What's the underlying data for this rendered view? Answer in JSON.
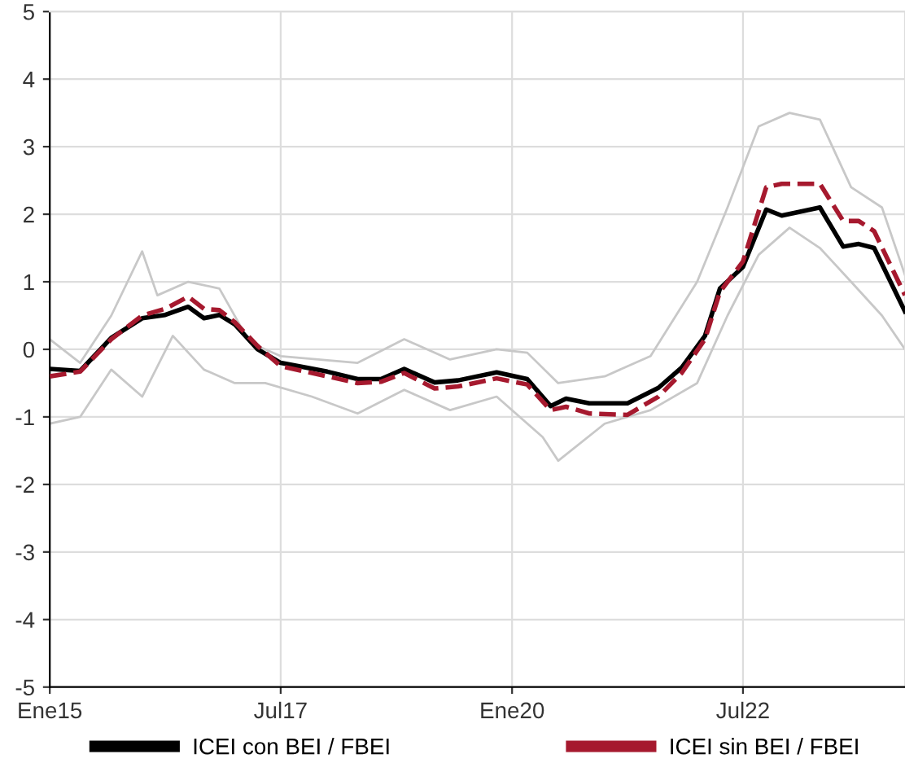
{
  "chart_data": {
    "type": "line",
    "xlim": [
      "2015-01",
      "2024-04"
    ],
    "xticks": [
      {
        "value": "2015-01",
        "label": "Ene15"
      },
      {
        "value": "2017-07",
        "label": "Jul17"
      },
      {
        "value": "2020-01",
        "label": "Ene20"
      },
      {
        "value": "2022-07",
        "label": "Jul22"
      }
    ],
    "ylim": [
      -5,
      5
    ],
    "yticks": [
      -5,
      -4,
      -3,
      -2,
      -1,
      0,
      1,
      2,
      3,
      4,
      5
    ],
    "grid": true,
    "legend": "bottom",
    "series": [
      {
        "color": "#c8c8c8",
        "x": [
          "2015-01",
          "2015-05",
          "2015-09",
          "2016-01",
          "2016-03",
          "2016-07",
          "2016-11",
          "2017-03",
          "2017-07",
          "2018-05",
          "2018-11",
          "2019-05",
          "2019-11",
          "2020-03",
          "2020-07",
          "2021-01",
          "2021-07",
          "2022-01",
          "2022-05",
          "2022-09",
          "2023-01",
          "2023-05",
          "2023-09",
          "2024-01",
          "2024-04"
        ],
        "values": [
          0.15,
          -0.2,
          0.5,
          1.45,
          0.8,
          1.0,
          0.9,
          0.1,
          -0.1,
          -0.2,
          0.15,
          -0.15,
          0.0,
          -0.05,
          -0.5,
          -0.4,
          -0.1,
          1.0,
          2.1,
          3.3,
          3.5,
          3.4,
          2.4,
          2.1,
          1.1
        ]
      },
      {
        "color": "#c8c8c8",
        "x": [
          "2015-01",
          "2015-05",
          "2015-09",
          "2016-01",
          "2016-05",
          "2016-09",
          "2017-01",
          "2017-05",
          "2017-11",
          "2018-05",
          "2018-11",
          "2019-05",
          "2019-11",
          "2020-05",
          "2020-07",
          "2021-01",
          "2021-07",
          "2022-01",
          "2022-05",
          "2022-09",
          "2023-01",
          "2023-05",
          "2023-09",
          "2024-01",
          "2024-04"
        ],
        "values": [
          -1.1,
          -1.0,
          -0.3,
          -0.7,
          0.2,
          -0.3,
          -0.5,
          -0.5,
          -0.7,
          -0.95,
          -0.6,
          -0.9,
          -0.7,
          -1.3,
          -1.65,
          -1.1,
          -0.9,
          -0.5,
          0.5,
          1.4,
          1.8,
          1.5,
          1.0,
          0.5,
          0.0
        ]
      },
      {
        "name": "ICEI con BEI / FBEI",
        "color": "#000000",
        "line_style": "solid",
        "x": [
          "2015-01",
          "2015-05",
          "2015-09",
          "2016-01",
          "2016-04",
          "2016-07",
          "2016-09",
          "2016-11",
          "2017-01",
          "2017-04",
          "2017-07",
          "2018-01",
          "2018-05",
          "2018-08",
          "2018-11",
          "2019-03",
          "2019-06",
          "2019-11",
          "2020-03",
          "2020-06",
          "2020-08",
          "2020-11",
          "2021-04",
          "2021-08",
          "2021-11",
          "2022-02",
          "2022-04",
          "2022-07",
          "2022-10",
          "2022-12",
          "2023-05",
          "2023-08",
          "2023-10",
          "2023-12",
          "2024-04"
        ],
        "values": [
          -0.29,
          -0.32,
          0.17,
          0.46,
          0.51,
          0.63,
          0.46,
          0.51,
          0.37,
          0.0,
          -0.2,
          -0.33,
          -0.44,
          -0.44,
          -0.29,
          -0.49,
          -0.46,
          -0.34,
          -0.44,
          -0.84,
          -0.73,
          -0.8,
          -0.8,
          -0.57,
          -0.27,
          0.2,
          0.9,
          1.22,
          2.07,
          1.98,
          2.1,
          1.52,
          1.56,
          1.5,
          0.56
        ]
      },
      {
        "name": "ICEI sin BEI / FBEI",
        "color": "#a6192e",
        "line_style": "dashed",
        "x": [
          "2015-01",
          "2015-05",
          "2015-09",
          "2016-01",
          "2016-04",
          "2016-07",
          "2016-09",
          "2016-11",
          "2017-01",
          "2017-04",
          "2017-07",
          "2018-01",
          "2018-05",
          "2018-08",
          "2018-11",
          "2019-03",
          "2019-06",
          "2019-11",
          "2020-03",
          "2020-06",
          "2020-08",
          "2020-11",
          "2021-04",
          "2021-08",
          "2021-11",
          "2022-02",
          "2022-04",
          "2022-07",
          "2022-10",
          "2022-12",
          "2023-05",
          "2023-08",
          "2023-10",
          "2023-12",
          "2024-04"
        ],
        "values": [
          -0.4,
          -0.33,
          0.15,
          0.5,
          0.6,
          0.78,
          0.6,
          0.58,
          0.4,
          0.05,
          -0.25,
          -0.4,
          -0.5,
          -0.48,
          -0.35,
          -0.58,
          -0.55,
          -0.43,
          -0.52,
          -0.9,
          -0.85,
          -0.95,
          -0.97,
          -0.7,
          -0.35,
          0.15,
          0.85,
          1.3,
          2.4,
          2.45,
          2.45,
          1.9,
          1.9,
          1.75,
          0.8
        ]
      }
    ]
  }
}
